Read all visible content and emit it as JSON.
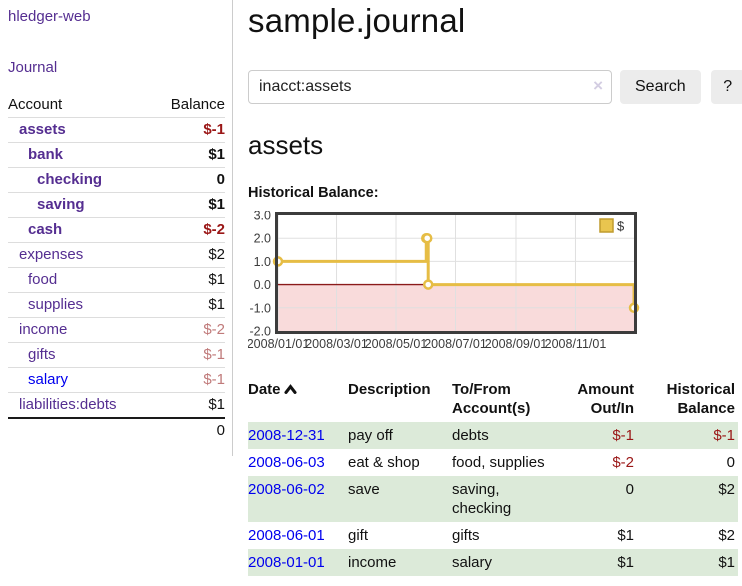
{
  "app": {
    "brand": "hledger-web",
    "nav_journal": "Journal"
  },
  "sidebar": {
    "headers": {
      "account": "Account",
      "balance": "Balance"
    },
    "accounts": [
      {
        "name": "assets",
        "depth": 1,
        "bold": true,
        "balance": "$-1",
        "balance_color": "negative"
      },
      {
        "name": "bank",
        "depth": 2,
        "bold": true,
        "balance": "$1",
        "balance_color": "normal"
      },
      {
        "name": "checking",
        "depth": 3,
        "bold": true,
        "balance": "0",
        "balance_color": "normal"
      },
      {
        "name": "saving",
        "depth": 3,
        "bold": true,
        "balance": "$1",
        "balance_color": "normal"
      },
      {
        "name": "cash",
        "depth": 2,
        "bold": true,
        "balance": "$-2",
        "balance_color": "negative"
      },
      {
        "name": "expenses",
        "depth": 1,
        "bold": false,
        "balance": "$2",
        "balance_color": "normal"
      },
      {
        "name": "food",
        "depth": 2,
        "bold": false,
        "balance": "$1",
        "balance_color": "normal"
      },
      {
        "name": "supplies",
        "depth": 2,
        "bold": false,
        "balance": "$1",
        "balance_color": "normal"
      },
      {
        "name": "income",
        "depth": 1,
        "bold": false,
        "balance": "$-2",
        "balance_color": "negative-dim"
      },
      {
        "name": "gifts",
        "depth": 2,
        "bold": false,
        "balance": "$-1",
        "balance_color": "negative-dim"
      },
      {
        "name": "salary",
        "depth": 2,
        "bold": false,
        "balance": "$-1",
        "balance_color": "negative-dim",
        "link_color": "blue"
      },
      {
        "name": "liabilities:debts",
        "depth": 1,
        "bold": false,
        "balance": "$1",
        "balance_color": "normal"
      }
    ],
    "total": "0"
  },
  "header": {
    "title": "sample.journal"
  },
  "search": {
    "value": "inacct:assets",
    "clear_icon": "×",
    "button": "Search",
    "help_button": "?"
  },
  "account_page": {
    "title": "assets",
    "chart_label": "Historical Balance:"
  },
  "chart_data": {
    "type": "line",
    "style": "step",
    "title": "Historical Balance",
    "series": [
      {
        "name": "$",
        "points": [
          [
            "2008-01-01",
            1
          ],
          [
            "2008-06-01",
            2
          ],
          [
            "2008-06-02",
            2
          ],
          [
            "2008-06-03",
            0
          ],
          [
            "2008-12-31",
            -1
          ]
        ]
      }
    ],
    "xlim": [
      "2008-01-01",
      "2008-12-31"
    ],
    "ylim": [
      -2,
      3
    ],
    "yticks": [
      "3.0",
      "2.0",
      "1.0",
      "0.0",
      "-1.0",
      "-2.0"
    ],
    "xticks": [
      "2008/01/01",
      "2008/03/01",
      "2008/05/01",
      "2008/07/01",
      "2008/09/01",
      "2008/11/01"
    ],
    "legend": "$",
    "legend_position": "top-right",
    "grid": true
  },
  "register_table": {
    "headers": {
      "date": "Date",
      "description": "Description",
      "account": "To/From Account(s)",
      "amount": "Amount Out/In",
      "balance": "Historical Balance"
    },
    "rows": [
      {
        "date": "2008-12-31",
        "description": "pay off",
        "accounts": "debts",
        "amount": "$-1",
        "amount_negative": true,
        "balance": "$-1",
        "balance_negative": true
      },
      {
        "date": "2008-06-03",
        "description": "eat & shop",
        "accounts": "food, supplies",
        "amount": "$-2",
        "amount_negative": true,
        "balance": "0",
        "balance_negative": false
      },
      {
        "date": "2008-06-02",
        "description": "save",
        "accounts": "saving, checking",
        "amount": "0",
        "amount_negative": false,
        "balance": "$2",
        "balance_negative": false
      },
      {
        "date": "2008-06-01",
        "description": "gift",
        "accounts": "gifts",
        "amount": "$1",
        "amount_negative": false,
        "balance": "$2",
        "balance_negative": false
      },
      {
        "date": "2008-01-01",
        "description": "income",
        "accounts": "salary",
        "amount": "$1",
        "amount_negative": false,
        "balance": "$1",
        "balance_negative": false
      }
    ]
  },
  "colors": {
    "link-purple": "#552e91",
    "link-blue": "#0000ee",
    "negative": "#9a1616",
    "negative-dim": "#c07a7a",
    "row-shade-green": "#dcead9",
    "chart-line-gold": "#e6bd45",
    "chart-point-fill": "#ffffff",
    "chart-negative-fill": "#f9dbdb",
    "chart-zero-line": "#8b1a1a",
    "chart-border": "#3c3c3c",
    "chart-grid": "#e0e0e0",
    "legend-square-fill": "#e9c54f",
    "legend-square-border": "#bf9b2f"
  }
}
